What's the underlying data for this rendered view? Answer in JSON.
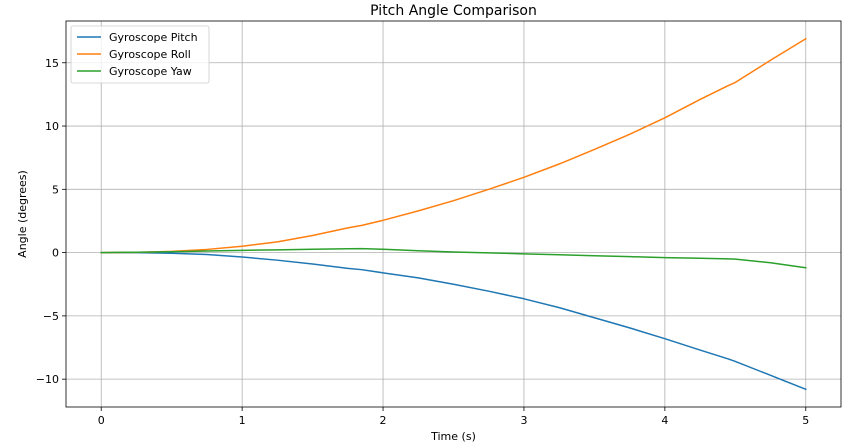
{
  "chart_data": {
    "type": "line",
    "title": "Pitch Angle Comparison",
    "xlabel": "Time (s)",
    "ylabel": "Angle (degrees)",
    "xlim": [
      -0.25,
      5.25
    ],
    "ylim": [
      -12.2,
      18.3
    ],
    "xticks": [
      0,
      1,
      2,
      3,
      4,
      5
    ],
    "xtick_labels": [
      "0",
      "1",
      "2",
      "3",
      "4",
      "5"
    ],
    "yticks": [
      -10,
      -5,
      0,
      5,
      10,
      15
    ],
    "ytick_labels": [
      "−10",
      "−5",
      "0",
      "5",
      "10",
      "15"
    ],
    "grid": true,
    "legend_position": "top-left",
    "x": [
      0,
      0.25,
      0.5,
      0.75,
      1,
      1.25,
      1.5,
      1.75,
      1.85,
      2,
      2.25,
      2.5,
      2.75,
      3,
      3.25,
      3.5,
      3.75,
      4,
      4.25,
      4.45,
      4.5,
      4.75,
      5
    ],
    "series": [
      {
        "name": "Gyroscope Pitch",
        "color": "#1f77b4",
        "values": [
          0,
          0,
          -0.05,
          -0.15,
          -0.35,
          -0.6,
          -0.9,
          -1.25,
          -1.35,
          -1.6,
          -2.0,
          -2.5,
          -3.05,
          -3.65,
          -4.35,
          -5.15,
          -5.95,
          -6.8,
          -7.7,
          -8.4,
          -8.6,
          -9.7,
          -10.8
        ]
      },
      {
        "name": "Gyroscope Roll",
        "color": "#ff7f0e",
        "values": [
          0,
          0.02,
          0.1,
          0.25,
          0.5,
          0.85,
          1.35,
          1.95,
          2.15,
          2.55,
          3.3,
          4.1,
          5.0,
          5.95,
          7.0,
          8.15,
          9.35,
          10.65,
          12.1,
          13.2,
          13.45,
          15.2,
          16.9
        ]
      },
      {
        "name": "Gyroscope Yaw",
        "color": "#2ca02c",
        "values": [
          0,
          0.03,
          0.07,
          0.13,
          0.18,
          0.22,
          0.26,
          0.3,
          0.31,
          0.26,
          0.15,
          0.05,
          -0.02,
          -0.1,
          -0.17,
          -0.25,
          -0.32,
          -0.4,
          -0.45,
          -0.5,
          -0.52,
          -0.8,
          -1.2
        ]
      }
    ]
  }
}
